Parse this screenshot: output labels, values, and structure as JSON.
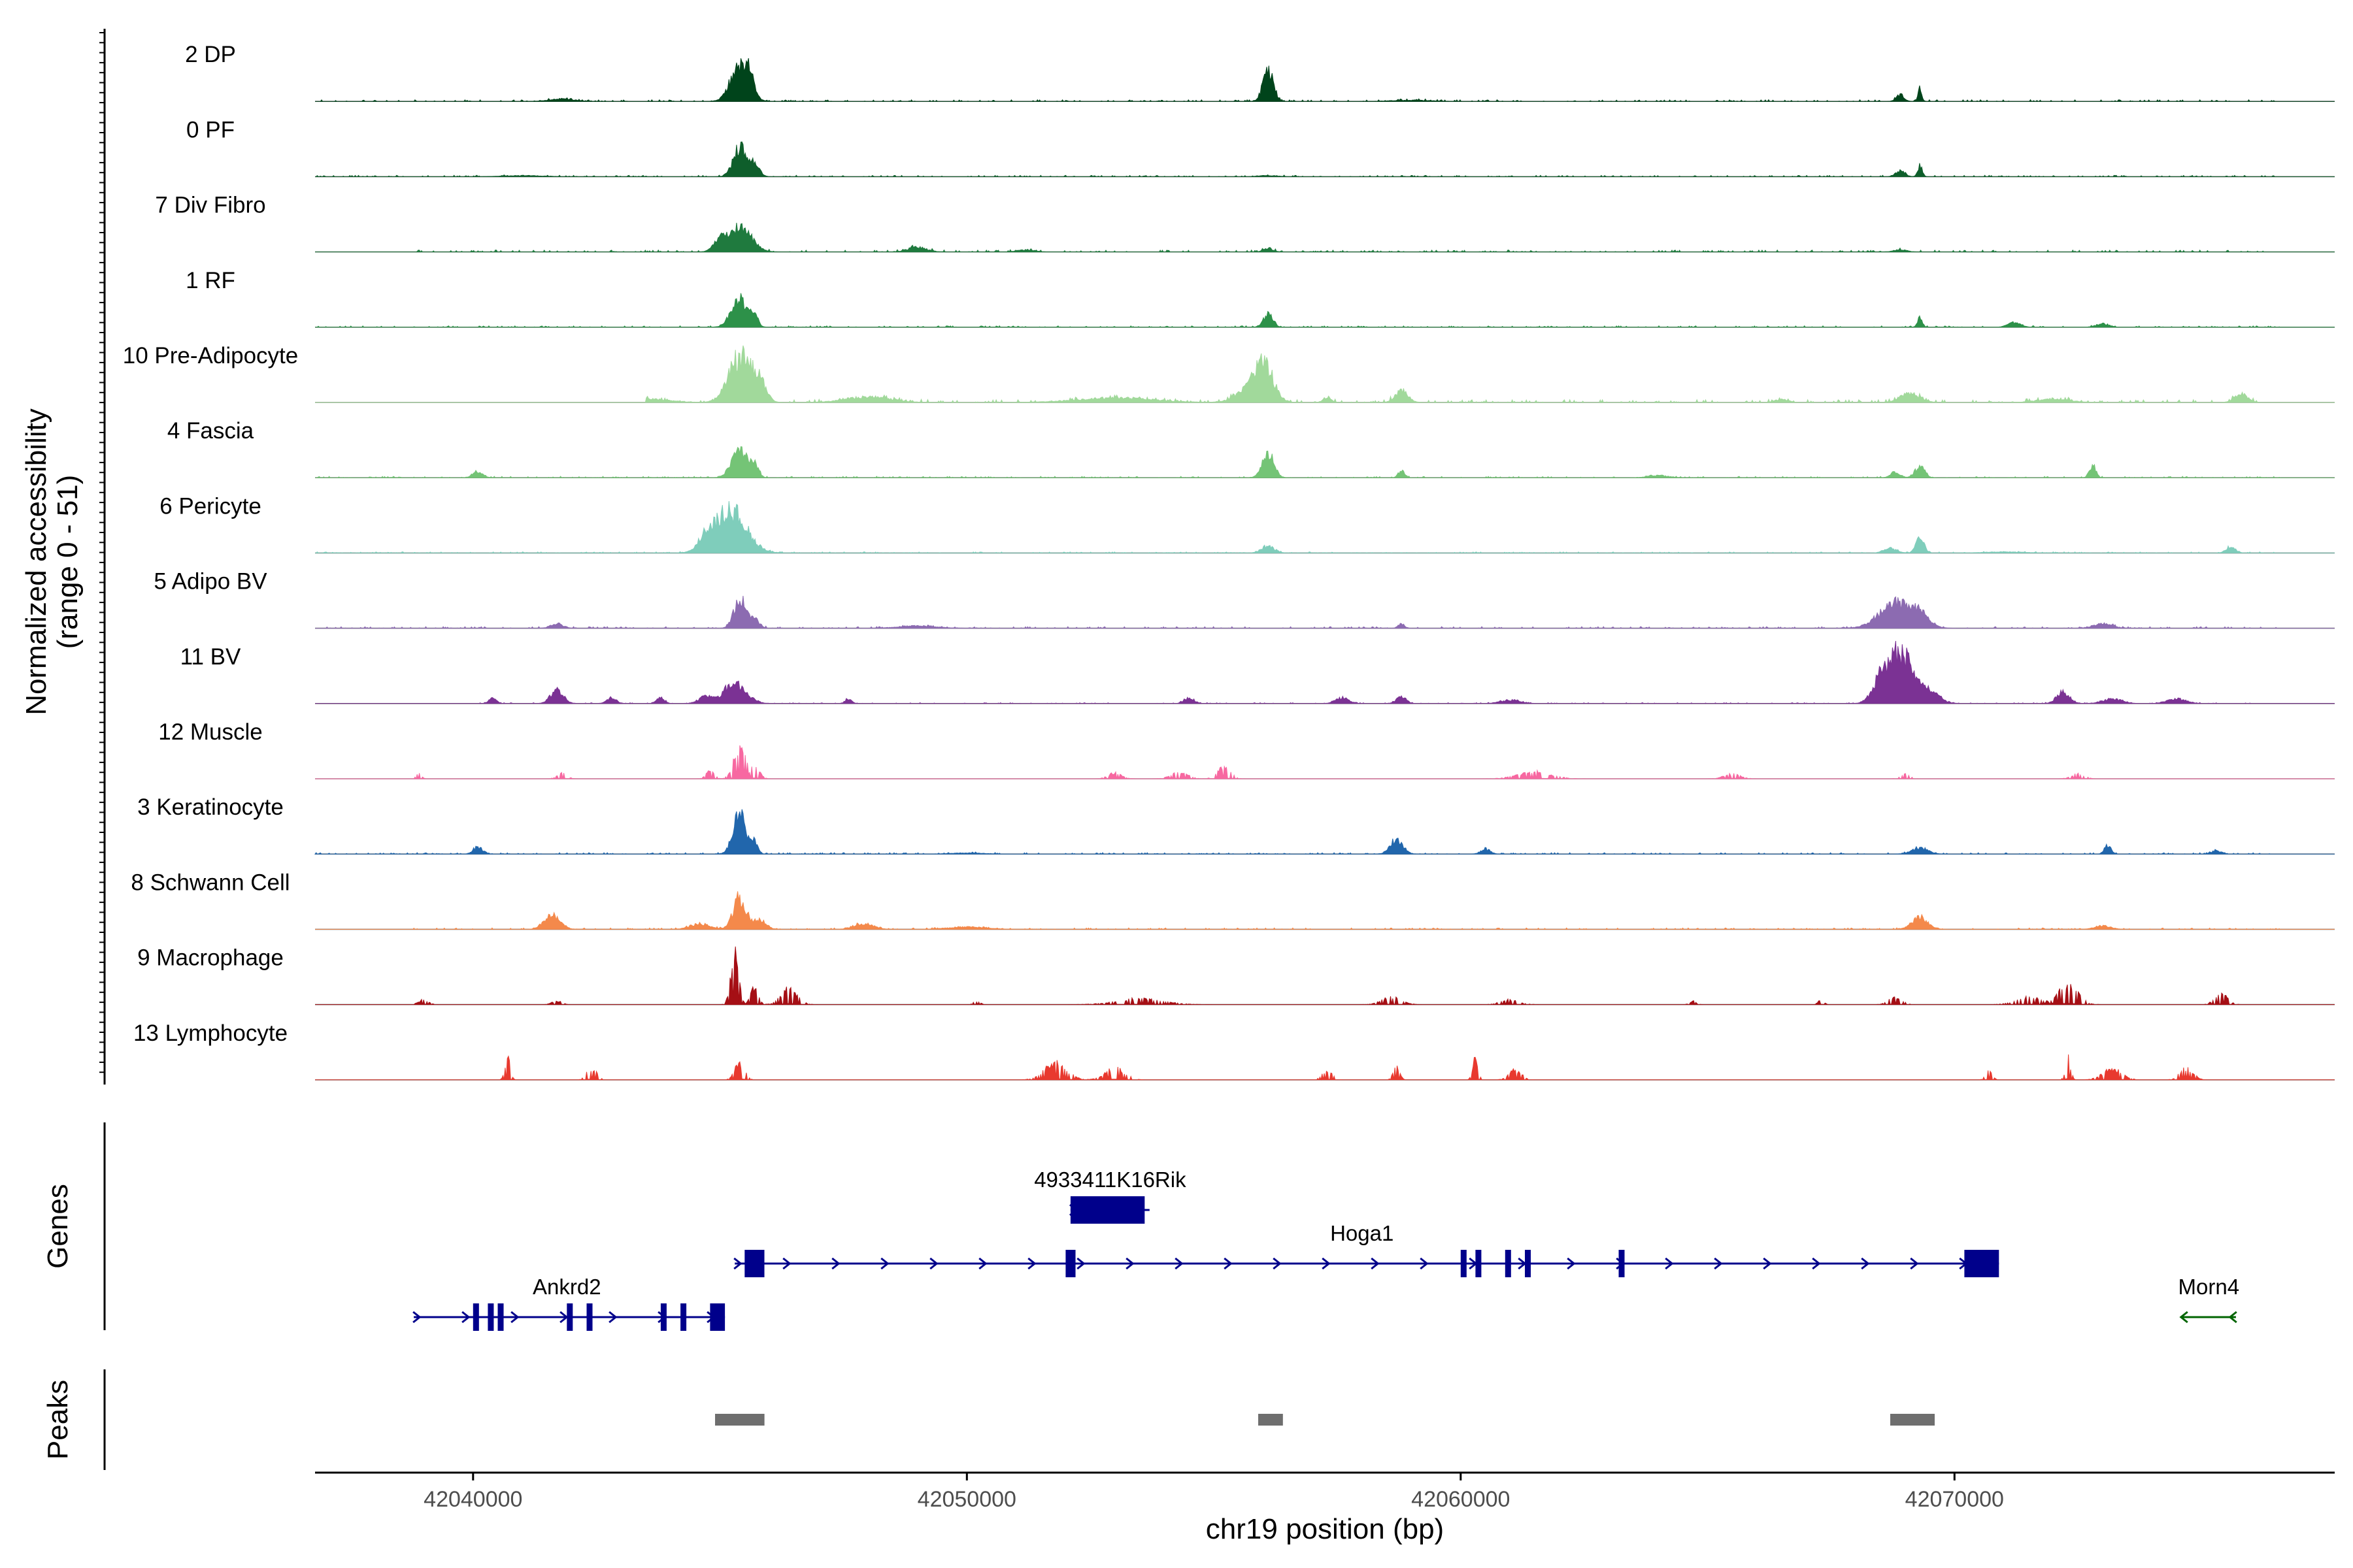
{
  "chart_data": {
    "type": "area",
    "title": "",
    "y_axis_title": [
      "Normalized accessibility",
      "(range 0 - 51)"
    ],
    "ylim": [
      0,
      51
    ],
    "xlabel": "chr19 position (bp)",
    "xlim": [
      42036800,
      42077700
    ],
    "x_ticks": [
      42040000,
      42050000,
      42060000,
      42070000
    ],
    "x_tick_labels": [
      "42040000",
      "42050000",
      "42060000",
      "42070000"
    ],
    "peak_positions": [
      42045300,
      42056100,
      42068900,
      42069300,
      42072900
    ],
    "tracks": [
      {
        "name": "2 DP",
        "color": "#00441b",
        "peaks": [
          [
            42045400,
            280,
            30,
            9
          ],
          [
            42045600,
            140,
            14,
            4
          ],
          [
            42056100,
            160,
            27,
            7
          ],
          [
            42068900,
            120,
            6,
            2
          ],
          [
            42069300,
            60,
            11,
            2
          ],
          [
            42041800,
            400,
            2,
            3
          ],
          [
            42059000,
            600,
            1,
            4
          ]
        ],
        "noise": 0.6,
        "start": 42036800,
        "end": 42076600
      },
      {
        "name": "0 PF",
        "color": "#0e5e2b",
        "peaks": [
          [
            42045400,
            200,
            26,
            6
          ],
          [
            42045700,
            150,
            12,
            4
          ],
          [
            42068900,
            150,
            5,
            2
          ],
          [
            42069300,
            70,
            10,
            2
          ],
          [
            42041000,
            600,
            1,
            4
          ],
          [
            42056100,
            300,
            1,
            3
          ]
        ],
        "noise": 0.5,
        "start": 42036800,
        "end": 42076600
      },
      {
        "name": "7 Div Fibro",
        "color": "#1f7a3e",
        "peaks": [
          [
            42045400,
            350,
            22,
            11
          ],
          [
            42045000,
            200,
            9,
            4
          ],
          [
            42049000,
            300,
            4,
            4
          ],
          [
            42051200,
            250,
            2,
            3
          ],
          [
            42056100,
            150,
            3,
            2
          ],
          [
            42068900,
            200,
            2,
            3
          ]
        ],
        "noise": 0.7,
        "start": 42038800,
        "end": 42076600
      },
      {
        "name": "1 RF",
        "color": "#2d9149",
        "peaks": [
          [
            42045400,
            260,
            24,
            7
          ],
          [
            42045700,
            100,
            9,
            2
          ],
          [
            42056100,
            150,
            11,
            3
          ],
          [
            42069300,
            80,
            8,
            2
          ],
          [
            42071200,
            200,
            4,
            2
          ],
          [
            42073000,
            200,
            3,
            2
          ]
        ],
        "noise": 0.5,
        "start": 42036800,
        "end": 42076600
      },
      {
        "name": "10 Pre-Adipocyte",
        "color": "#a1d99b",
        "peaks": [
          [
            42045400,
            350,
            40,
            14
          ],
          [
            42045800,
            200,
            18,
            5
          ],
          [
            42056000,
            300,
            36,
            10
          ],
          [
            42055600,
            350,
            8,
            5
          ],
          [
            42058800,
            200,
            10,
            3
          ],
          [
            42057300,
            120,
            5,
            2
          ],
          [
            42043500,
            700,
            3,
            7
          ],
          [
            42048000,
            700,
            5,
            7
          ],
          [
            42053000,
            1200,
            4,
            10
          ],
          [
            42069100,
            300,
            8,
            4
          ],
          [
            42075800,
            200,
            8,
            3
          ],
          [
            42072000,
            500,
            3,
            4
          ],
          [
            42066500,
            200,
            3,
            2
          ]
        ],
        "noise": 1.0,
        "start": 42043500,
        "end": 42076200
      },
      {
        "name": "4 Fascia",
        "color": "#74c476",
        "peaks": [
          [
            42045400,
            250,
            24,
            7
          ],
          [
            42045700,
            120,
            10,
            3
          ],
          [
            42056100,
            180,
            22,
            6
          ],
          [
            42040100,
            150,
            5,
            2
          ],
          [
            42058800,
            100,
            6,
            2
          ],
          [
            42068800,
            150,
            5,
            2
          ],
          [
            42069300,
            150,
            10,
            3
          ],
          [
            42072800,
            100,
            11,
            2
          ],
          [
            42064000,
            300,
            2,
            2
          ]
        ],
        "noise": 0.5,
        "start": 42036800,
        "end": 42076600
      },
      {
        "name": "6 Pericyte",
        "color": "#7fcdbb",
        "peaks": [
          [
            42045200,
            500,
            38,
            18
          ],
          [
            42044700,
            200,
            8,
            4
          ],
          [
            42056100,
            200,
            6,
            3
          ],
          [
            42069300,
            120,
            15,
            4
          ],
          [
            42068700,
            200,
            4,
            3
          ],
          [
            42075600,
            150,
            5,
            2
          ],
          [
            42071000,
            600,
            1,
            4
          ]
        ],
        "noise": 0.4,
        "start": 42036800,
        "end": 42076600
      },
      {
        "name": "5 Adipo BV",
        "color": "#8c6bb1",
        "peaks": [
          [
            42045400,
            180,
            26,
            6
          ],
          [
            42045700,
            150,
            8,
            3
          ],
          [
            42068800,
            500,
            22,
            13
          ],
          [
            42069300,
            300,
            10,
            5
          ],
          [
            42041700,
            200,
            4,
            3
          ],
          [
            42058800,
            100,
            4,
            2
          ],
          [
            42073000,
            300,
            4,
            3
          ],
          [
            42049000,
            600,
            2,
            4
          ]
        ],
        "noise": 0.6,
        "start": 42036800,
        "end": 42076600
      },
      {
        "name": "11 BV",
        "color": "#7b3294",
        "peaks": [
          [
            42068900,
            400,
            45,
            18
          ],
          [
            42068500,
            250,
            15,
            5
          ],
          [
            42069500,
            300,
            10,
            5
          ],
          [
            42045300,
            350,
            18,
            12
          ],
          [
            42044700,
            200,
            6,
            4
          ],
          [
            42041700,
            200,
            12,
            3
          ],
          [
            42040400,
            100,
            6,
            1
          ],
          [
            42042800,
            150,
            5,
            2
          ],
          [
            42043800,
            120,
            5,
            2
          ],
          [
            42047600,
            100,
            4,
            1
          ],
          [
            42054500,
            150,
            5,
            2
          ],
          [
            42057600,
            200,
            5,
            3
          ],
          [
            42058800,
            150,
            6,
            2
          ],
          [
            42061000,
            300,
            3,
            3
          ],
          [
            42072200,
            200,
            10,
            3
          ],
          [
            42073200,
            300,
            4,
            4
          ],
          [
            42074500,
            300,
            4,
            3
          ]
        ],
        "noise": 0.3,
        "start": 42040000,
        "end": 42076000
      },
      {
        "name": "12 Muscle",
        "color": "#f768a1",
        "peaks": [
          [
            42045400,
            180,
            28,
            6
          ],
          [
            42045700,
            150,
            10,
            3
          ],
          [
            42044800,
            120,
            7,
            2
          ],
          [
            42041800,
            150,
            5,
            2
          ],
          [
            42055200,
            200,
            10,
            3
          ],
          [
            42054300,
            250,
            6,
            3
          ],
          [
            42053000,
            200,
            5,
            3
          ],
          [
            42061500,
            500,
            6,
            6
          ],
          [
            42065500,
            250,
            4,
            3
          ],
          [
            42069000,
            150,
            4,
            2
          ],
          [
            42072500,
            200,
            4,
            2
          ],
          [
            42038900,
            80,
            4,
            1
          ]
        ],
        "noise": 0.1,
        "start": 42038800,
        "end": 42073000
      },
      {
        "name": "3 Keratinocyte",
        "color": "#2166ac",
        "peaks": [
          [
            42045400,
            200,
            35,
            7
          ],
          [
            42045700,
            100,
            10,
            2
          ],
          [
            42040100,
            150,
            6,
            2
          ],
          [
            42058700,
            200,
            12,
            4
          ],
          [
            42060500,
            150,
            4,
            2
          ],
          [
            42069300,
            250,
            5,
            3
          ],
          [
            42073100,
            100,
            8,
            2
          ],
          [
            42075300,
            150,
            3,
            2
          ],
          [
            42050000,
            500,
            1,
            4
          ]
        ],
        "noise": 0.5,
        "start": 42036800,
        "end": 42076600
      },
      {
        "name": "8 Schwann Cell",
        "color": "#f4894b",
        "peaks": [
          [
            42045400,
            200,
            28,
            7
          ],
          [
            42045800,
            200,
            8,
            4
          ],
          [
            42041600,
            250,
            12,
            5
          ],
          [
            42044600,
            300,
            5,
            3
          ],
          [
            42047900,
            300,
            5,
            4
          ],
          [
            42069300,
            250,
            10,
            4
          ],
          [
            42050000,
            600,
            2,
            5
          ],
          [
            42073000,
            250,
            3,
            2
          ]
        ],
        "noise": 0.5,
        "start": 42038800,
        "end": 42076600
      },
      {
        "name": "9 Macrophage",
        "color": "#a50f15",
        "peaks": [
          [
            42045300,
            120,
            42,
            5
          ],
          [
            42045700,
            120,
            14,
            3
          ],
          [
            42046400,
            250,
            14,
            4
          ],
          [
            42072300,
            300,
            16,
            6
          ],
          [
            42068800,
            200,
            6,
            3
          ],
          [
            42075400,
            200,
            9,
            3
          ],
          [
            42053500,
            700,
            5,
            6
          ],
          [
            42058600,
            300,
            6,
            3
          ],
          [
            42061000,
            300,
            4,
            3
          ],
          [
            42041700,
            150,
            3,
            2
          ],
          [
            42039000,
            150,
            4,
            2
          ],
          [
            42071500,
            400,
            6,
            4
          ],
          [
            42067300,
            80,
            5,
            1
          ],
          [
            42050200,
            100,
            3,
            1
          ],
          [
            42064700,
            100,
            3,
            1
          ]
        ],
        "noise": 0.2,
        "start": 42036800,
        "end": 42076600
      },
      {
        "name": "13 Lymphocyte",
        "color": "#e8392f",
        "peaks": [
          [
            42040700,
            80,
            18,
            1
          ],
          [
            42042400,
            150,
            10,
            2
          ],
          [
            42045400,
            150,
            14,
            2
          ],
          [
            42051800,
            350,
            14,
            5
          ],
          [
            42053000,
            300,
            10,
            3
          ],
          [
            42057300,
            150,
            8,
            2
          ],
          [
            42058700,
            100,
            10,
            2
          ],
          [
            42060300,
            80,
            20,
            1
          ],
          [
            42061100,
            200,
            8,
            2
          ],
          [
            42070700,
            100,
            8,
            1
          ],
          [
            42072300,
            80,
            18,
            1
          ],
          [
            42073200,
            300,
            9,
            4
          ],
          [
            42074700,
            200,
            10,
            2
          ]
        ],
        "noise": 0.0,
        "start": 42036800,
        "end": 42076600
      }
    ],
    "genes": {
      "panel_title": "Genes",
      "items": [
        {
          "name": "4933411K16Rik",
          "strand": "+",
          "start": 42052100,
          "end": 42053700,
          "exons": [
            [
              42052100,
              42052200
            ],
            [
              42052200,
              42053600
            ]
          ],
          "row": 0,
          "color": "#00008b"
        },
        {
          "name": "Hoga1",
          "strand": "+",
          "start": 42045300,
          "end": 42070900,
          "exons": [
            [
              42045500,
              42045900
            ],
            [
              42052000,
              42052200
            ],
            [
              42060000,
              42060100
            ],
            [
              42060300,
              42060400
            ],
            [
              42060900,
              42061000
            ],
            [
              42061300,
              42061400
            ],
            [
              42063200,
              42063300
            ],
            [
              42070200,
              42070900
            ]
          ],
          "row": 1,
          "color": "#00008b"
        },
        {
          "name": "Ankrd2",
          "strand": "+",
          "start": 42038800,
          "end": 42045100,
          "exons": [
            [
              42040000,
              42040100
            ],
            [
              42040300,
              42040400
            ],
            [
              42040500,
              42040600
            ],
            [
              42041900,
              42042000
            ],
            [
              42042300,
              42042400
            ],
            [
              42043800,
              42043900
            ],
            [
              42044200,
              42044300
            ],
            [
              42044800,
              42045100
            ]
          ],
          "row": 2,
          "color": "#00008b"
        },
        {
          "name": "Morn4",
          "strand": "-",
          "start": 42074600,
          "end": 42075700,
          "exons": [],
          "row": 2,
          "color": "#006400"
        }
      ]
    },
    "peaks_panel": {
      "panel_title": "Peaks",
      "regions": [
        [
          42044900,
          42045900
        ],
        [
          42055900,
          42056400
        ],
        [
          42068700,
          42069600
        ]
      ],
      "color": "#6e6e6e"
    }
  }
}
